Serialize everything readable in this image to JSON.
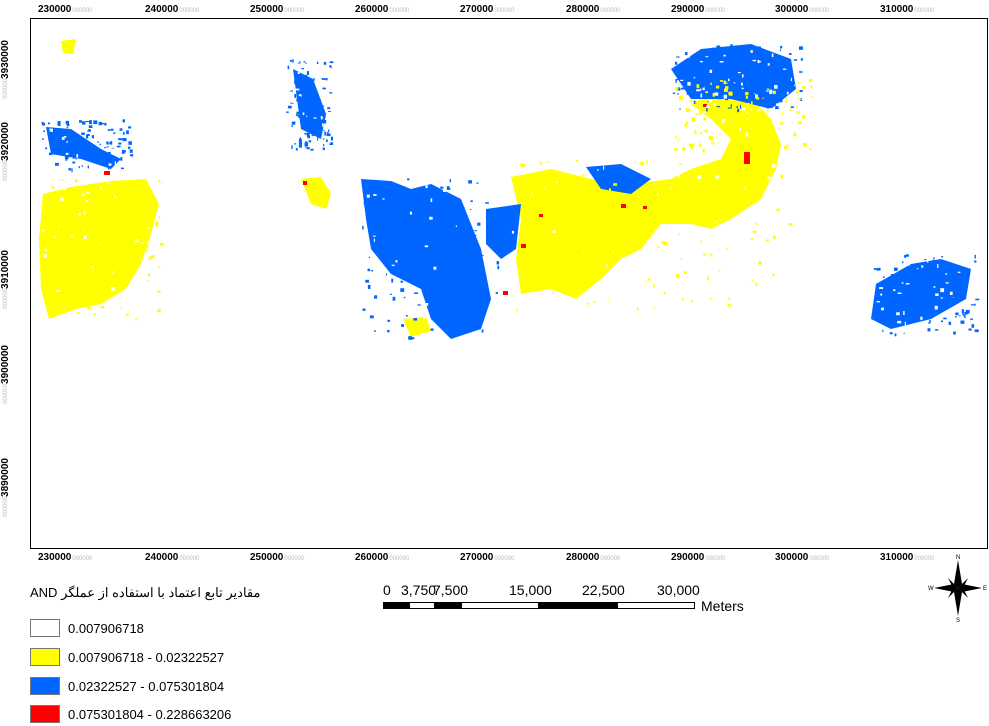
{
  "axes": {
    "x_ticks": [
      {
        "value": "230000",
        "frac": "000000"
      },
      {
        "value": "240000",
        "frac": "000000"
      },
      {
        "value": "250000",
        "frac": "000000"
      },
      {
        "value": "260000",
        "frac": "000000"
      },
      {
        "value": "270000",
        "frac": "000000"
      },
      {
        "value": "280000",
        "frac": "000000"
      },
      {
        "value": "290000",
        "frac": "000000"
      },
      {
        "value": "300000",
        "frac": "000000"
      },
      {
        "value": "310000",
        "frac": "000000"
      }
    ],
    "y_ticks": [
      {
        "value": "3930000",
        "frac": "000000"
      },
      {
        "value": "3920000",
        "frac": "000000"
      },
      {
        "value": "3910000",
        "frac": "000000"
      },
      {
        "value": "3900000",
        "frac": "000000"
      },
      {
        "value": "3890000",
        "frac": "000000"
      }
    ]
  },
  "legend": {
    "title": "مقادیر تابع اعتماد با استفاده از عملگر AND",
    "items": [
      {
        "label": "0.007906718",
        "color": "#FFFFFF"
      },
      {
        "label": "0.007906718 - 0.02322527",
        "color": "#FFFF00"
      },
      {
        "label": "0.02322527 - 0.075301804",
        "color": "#0066FF"
      },
      {
        "label": "0.075301804 - 0.228663206",
        "color": "#FF0000"
      }
    ]
  },
  "scalebar": {
    "labels": [
      "0",
      "3,750",
      "7,500",
      "15,000",
      "22,500",
      "30,000"
    ],
    "units": "Meters"
  },
  "north_arrow": {
    "n": "N",
    "s": "S",
    "e": "E",
    "w": "W"
  },
  "colors": {
    "low": "#FFFF00",
    "mid": "#0066FF",
    "high": "#FF0000"
  }
}
